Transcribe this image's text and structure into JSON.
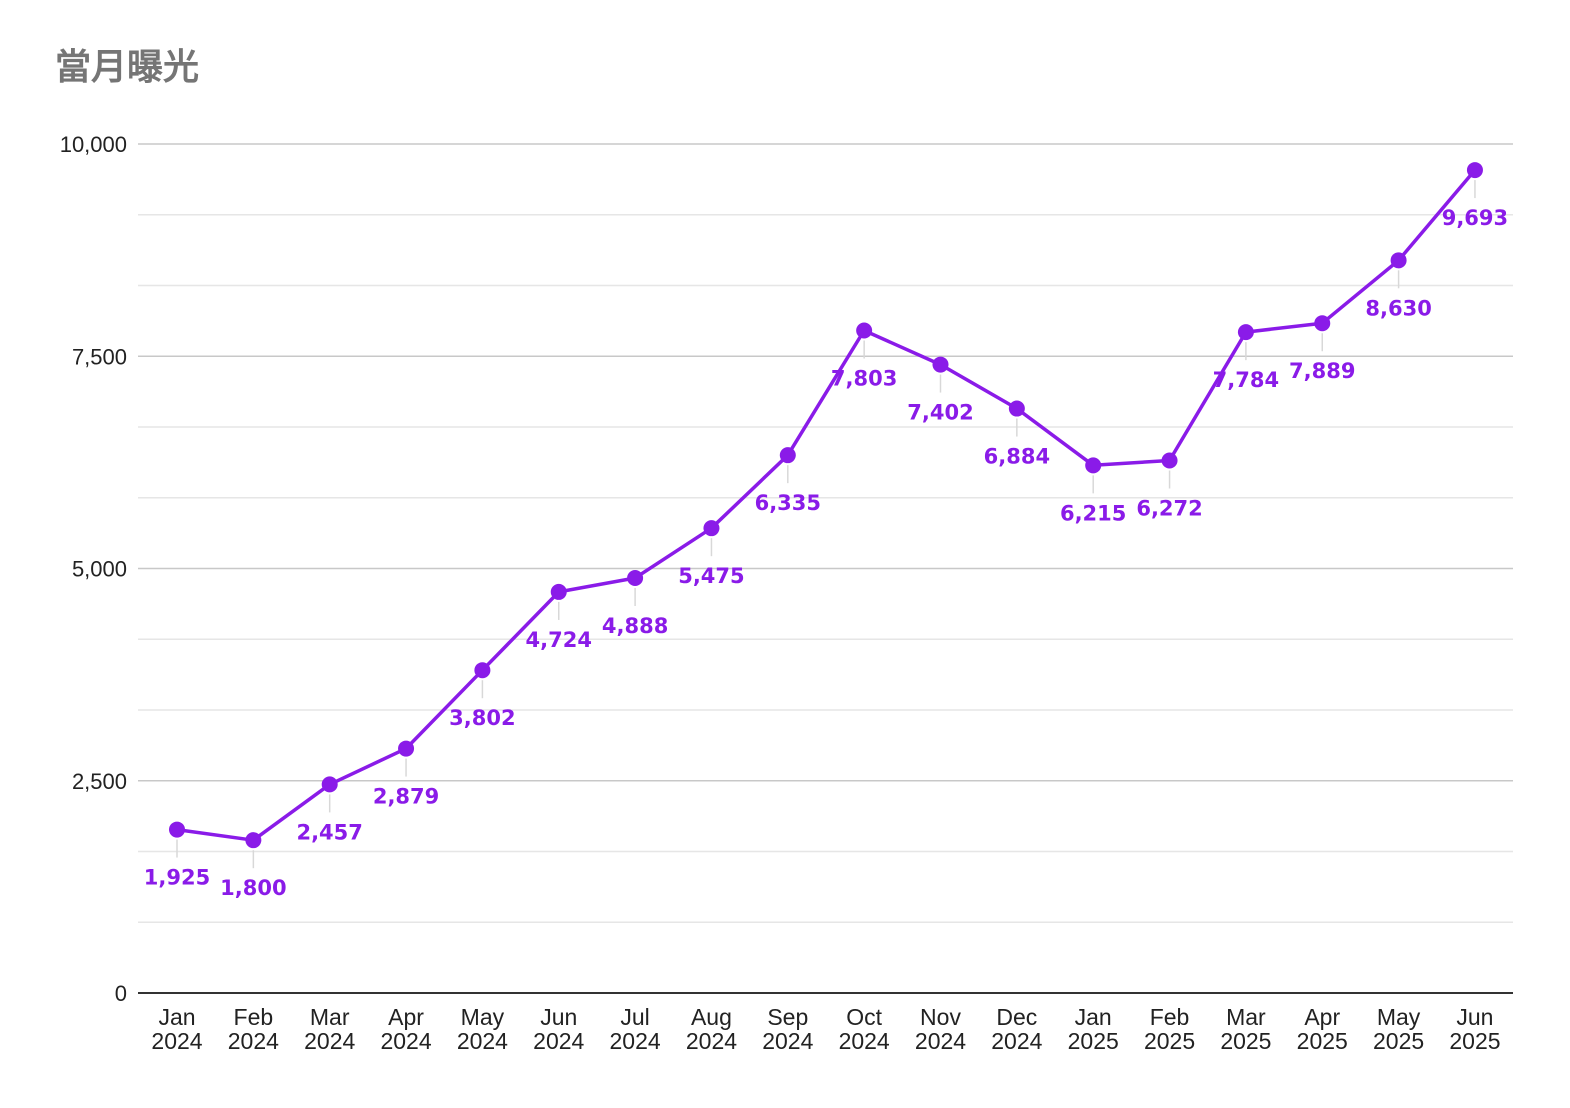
{
  "chart_data": {
    "type": "line",
    "title": "當月曝光",
    "categories": [
      [
        "Jan",
        "2024"
      ],
      [
        "Feb",
        "2024"
      ],
      [
        "Mar",
        "2024"
      ],
      [
        "Apr",
        "2024"
      ],
      [
        "May",
        "2024"
      ],
      [
        "Jun",
        "2024"
      ],
      [
        "Jul",
        "2024"
      ],
      [
        "Aug",
        "2024"
      ],
      [
        "Sep",
        "2024"
      ],
      [
        "Oct",
        "2024"
      ],
      [
        "Nov",
        "2024"
      ],
      [
        "Dec",
        "2024"
      ],
      [
        "Jan",
        "2025"
      ],
      [
        "Feb",
        "2025"
      ],
      [
        "Mar",
        "2025"
      ],
      [
        "Apr",
        "2025"
      ],
      [
        "May",
        "2025"
      ],
      [
        "Jun",
        "2025"
      ]
    ],
    "values": [
      1925,
      1800,
      2457,
      2879,
      3802,
      4724,
      4888,
      5475,
      6335,
      7803,
      7402,
      6884,
      6215,
      6272,
      7784,
      7889,
      8630,
      9693
    ],
    "data_labels": [
      "1,925",
      "1,800",
      "2,457",
      "2,879",
      "3,802",
      "4,724",
      "4,888",
      "5,475",
      "6,335",
      "7,803",
      "7,402",
      "6,884",
      "6,215",
      "6,272",
      "7,784",
      "7,889",
      "8,630",
      "9,693"
    ],
    "ylim": [
      0,
      10000
    ],
    "y_ticks": [
      0,
      2500,
      5000,
      7500,
      10000
    ],
    "y_tick_labels": [
      "0",
      "2,500",
      "5,000",
      "7,500",
      "10,000"
    ],
    "grid": true,
    "xlabel": "",
    "ylabel": "",
    "colors": {
      "series": "#8a1be8",
      "label": "#8a1be8",
      "major_grid": "#c8c8c8",
      "minor_grid": "#e6e6e6",
      "axis": "#333333"
    }
  }
}
